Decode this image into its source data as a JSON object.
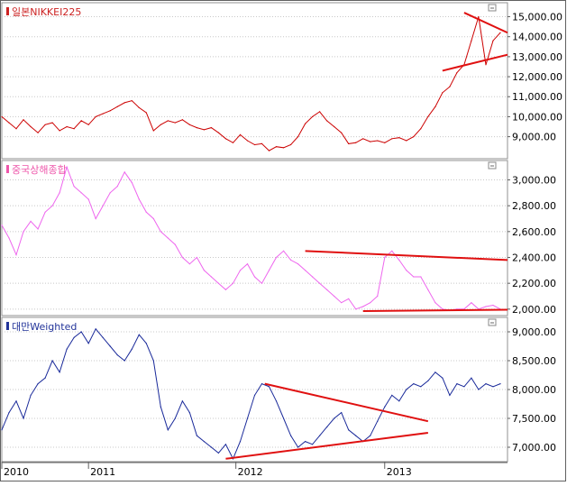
{
  "chart_data": [
    {
      "type": "line",
      "title": "일본NIKKEI225",
      "color": "#cc0000",
      "title_color": "#cc2222",
      "ylim": [
        7900,
        15700
      ],
      "yticks": [
        "15,000.00",
        "14,000.00",
        "13,000.00",
        "12,000.00",
        "11,000.00",
        "10,000.00",
        "9,000.00"
      ],
      "ytick_values": [
        15000,
        14000,
        13000,
        12000,
        11000,
        10000,
        9000
      ],
      "x_start": 2010.0,
      "x_end": 2013.5,
      "series": [
        {
          "x": [
            2010.0,
            2010.05,
            2010.1,
            2010.15,
            2010.2,
            2010.25,
            2010.3,
            2010.35,
            2010.4,
            2010.45,
            2010.5,
            2010.55,
            2010.6,
            2010.65,
            2010.7,
            2010.75,
            2010.8,
            2010.85,
            2010.9,
            2010.95,
            2011.0,
            2011.05,
            2011.1,
            2011.15,
            2011.2,
            2011.25,
            2011.3,
            2011.35,
            2011.4,
            2011.45,
            2011.5,
            2011.55,
            2011.6,
            2011.65,
            2011.7,
            2011.75,
            2011.8,
            2011.85,
            2011.9,
            2011.95,
            2012.0,
            2012.05,
            2012.1,
            2012.15,
            2012.2,
            2012.25,
            2012.3,
            2012.35,
            2012.4,
            2012.45,
            2012.5,
            2012.55,
            2012.6,
            2012.65,
            2012.7,
            2012.75,
            2012.8,
            2012.85,
            2012.9,
            2012.95,
            2013.0,
            2013.05,
            2013.1,
            2013.15,
            2013.2,
            2013.25,
            2013.3,
            2013.35,
            2013.4,
            2013.45
          ],
          "values": [
            10000,
            9700,
            9400,
            9850,
            9500,
            9200,
            9600,
            9700,
            9300,
            9500,
            9400,
            9800,
            9600,
            10000,
            10150,
            10300,
            10500,
            10700,
            10800,
            10450,
            10200,
            9300,
            9600,
            9800,
            9700,
            9850,
            9600,
            9450,
            9350,
            9450,
            9200,
            8900,
            8700,
            9100,
            8800,
            8600,
            8650,
            8300,
            8500,
            8450,
            8600,
            9000,
            9650,
            10000,
            10250,
            9800,
            9500,
            9200,
            8650,
            8700,
            8900,
            8750,
            8800,
            8700,
            8900,
            8950,
            8800,
            9000,
            9400,
            10000,
            10500,
            11200,
            11500,
            12200,
            12600,
            13800,
            15000,
            12600,
            13800,
            14200
          ]
        }
      ],
      "trendlines": [
        {
          "x1": 2013.05,
          "y1": 12300,
          "x2": 2013.5,
          "y2": 13100
        },
        {
          "x1": 2013.2,
          "y1": 15200,
          "x2": 2013.5,
          "y2": 14200
        }
      ]
    },
    {
      "type": "line",
      "title": "중국상해종합",
      "color": "#ee66ee",
      "title_color": "#ee55aa",
      "ylim": [
        1950,
        3150
      ],
      "yticks": [
        "3,000.00",
        "2,800.00",
        "2,600.00",
        "2,400.00",
        "2,200.00",
        "2,000.00"
      ],
      "ytick_values": [
        3000,
        2800,
        2600,
        2400,
        2200,
        2000
      ],
      "x_start": 2010.0,
      "x_end": 2013.5,
      "series": [
        {
          "x": [
            2010.0,
            2010.05,
            2010.1,
            2010.15,
            2010.2,
            2010.25,
            2010.3,
            2010.35,
            2010.4,
            2010.45,
            2010.5,
            2010.55,
            2010.6,
            2010.65,
            2010.7,
            2010.75,
            2010.8,
            2010.85,
            2010.9,
            2010.95,
            2011.0,
            2011.05,
            2011.1,
            2011.15,
            2011.2,
            2011.25,
            2011.3,
            2011.35,
            2011.4,
            2011.45,
            2011.5,
            2011.55,
            2011.6,
            2011.65,
            2011.7,
            2011.75,
            2011.8,
            2011.85,
            2011.9,
            2011.95,
            2012.0,
            2012.05,
            2012.1,
            2012.15,
            2012.2,
            2012.25,
            2012.3,
            2012.35,
            2012.4,
            2012.45,
            2012.5,
            2012.55,
            2012.6,
            2012.65,
            2012.7,
            2012.75,
            2012.8,
            2012.85,
            2012.9,
            2012.95,
            2013.0,
            2013.05,
            2013.1,
            2013.15,
            2013.2,
            2013.25,
            2013.3,
            2013.35,
            2013.4,
            2013.45
          ],
          "values": [
            2650,
            2550,
            2420,
            2600,
            2680,
            2620,
            2750,
            2800,
            2900,
            3100,
            2950,
            2900,
            2850,
            2700,
            2800,
            2900,
            2950,
            3060,
            2980,
            2850,
            2750,
            2700,
            2600,
            2550,
            2500,
            2400,
            2350,
            2400,
            2300,
            2250,
            2200,
            2150,
            2200,
            2300,
            2350,
            2250,
            2200,
            2300,
            2400,
            2450,
            2380,
            2350,
            2300,
            2250,
            2200,
            2150,
            2100,
            2050,
            2080,
            2000,
            2020,
            2050,
            2100,
            2400,
            2450,
            2380,
            2300,
            2250,
            2250,
            2150,
            2050,
            2000,
            1990,
            2000,
            2000,
            2050,
            2000,
            2020,
            2030,
            2000
          ]
        }
      ],
      "trendlines": [
        {
          "x1": 2012.1,
          "y1": 2450,
          "x2": 2013.5,
          "y2": 2380
        },
        {
          "x1": 2012.5,
          "y1": 1985,
          "x2": 2013.5,
          "y2": 1995
        }
      ]
    },
    {
      "type": "line",
      "title": "대만Weighted",
      "color": "#1a2a9a",
      "title_color": "#223399",
      "ylim": [
        6750,
        9250
      ],
      "yticks": [
        "9,000.00",
        "8,500.00",
        "8,000.00",
        "7,500.00",
        "7,000.00"
      ],
      "ytick_values": [
        9000,
        8500,
        8000,
        7500,
        7000
      ],
      "x_start": 2010.0,
      "x_end": 2013.5,
      "x_ticks": [
        {
          "label": "2010",
          "x": 2010.0
        },
        {
          "label": "2011",
          "x": 2010.6
        },
        {
          "label": "2012",
          "x": 2011.62
        },
        {
          "label": "2013",
          "x": 2012.65
        }
      ],
      "series": [
        {
          "x": [
            2010.0,
            2010.05,
            2010.1,
            2010.15,
            2010.2,
            2010.25,
            2010.3,
            2010.35,
            2010.4,
            2010.45,
            2010.5,
            2010.55,
            2010.6,
            2010.65,
            2010.7,
            2010.75,
            2010.8,
            2010.85,
            2010.9,
            2010.95,
            2011.0,
            2011.05,
            2011.1,
            2011.15,
            2011.2,
            2011.25,
            2011.3,
            2011.35,
            2011.4,
            2011.45,
            2011.5,
            2011.55,
            2011.6,
            2011.65,
            2011.7,
            2011.75,
            2011.8,
            2011.85,
            2011.9,
            2011.95,
            2012.0,
            2012.05,
            2012.1,
            2012.15,
            2012.2,
            2012.25,
            2012.3,
            2012.35,
            2012.4,
            2012.45,
            2012.5,
            2012.55,
            2012.6,
            2012.65,
            2012.7,
            2012.75,
            2012.8,
            2012.85,
            2012.9,
            2012.95,
            2013.0,
            2013.05,
            2013.1,
            2013.15,
            2013.2,
            2013.25,
            2013.3,
            2013.35,
            2013.4,
            2013.45
          ],
          "values": [
            7300,
            7600,
            7800,
            7500,
            7900,
            8100,
            8200,
            8500,
            8300,
            8700,
            8900,
            9000,
            8800,
            9050,
            8900,
            8750,
            8600,
            8500,
            8700,
            8950,
            8800,
            8500,
            7700,
            7300,
            7500,
            7800,
            7600,
            7200,
            7100,
            7000,
            6900,
            7050,
            6800,
            7100,
            7500,
            7900,
            8100,
            8050,
            7800,
            7500,
            7200,
            7000,
            7100,
            7050,
            7200,
            7350,
            7500,
            7600,
            7300,
            7200,
            7100,
            7200,
            7450,
            7700,
            7900,
            7800,
            8000,
            8100,
            8050,
            8150,
            8300,
            8200,
            7900,
            8100,
            8050,
            8200,
            8000,
            8100,
            8050,
            8100
          ]
        }
      ],
      "trendlines": [
        {
          "x1": 2011.82,
          "y1": 8100,
          "x2": 2012.95,
          "y2": 7450
        },
        {
          "x1": 2011.55,
          "y1": 6800,
          "x2": 2012.95,
          "y2": 7250
        }
      ]
    }
  ],
  "colors": {
    "trendline": "#e01010",
    "grid": "#c8c8c8",
    "frame": "#606060",
    "tick_text": "#000000"
  }
}
